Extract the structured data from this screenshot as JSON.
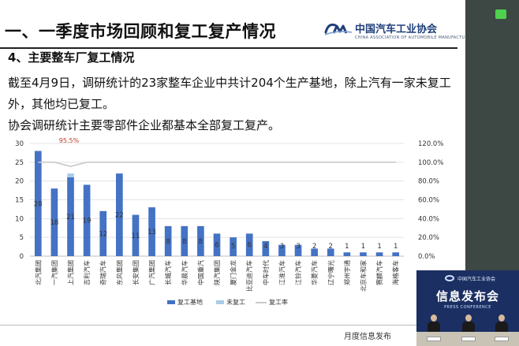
{
  "slide": {
    "title": "一、一季度市场回顾和复工复产情况",
    "logo_text": "中国汽车工业协会",
    "logo_sub": "CHINA ASSOCIATION OF AUTOMOBILE MANUFACTURERS",
    "section": "4、主要整车厂复工情况",
    "para1": "截至4月9日，调研统计的23家整车企业中共计204个生产基地，除上汽有一家未复工外，其他均已复工。",
    "para2": "协会调研统计主要零部件企业都基本全部复工复产。",
    "footer": "月度信息发布"
  },
  "video": {
    "org": "中国汽车工业协会",
    "title": "信息发布会",
    "subtitle": "PRESS CONFERENCE"
  },
  "colors": {
    "resumed": "#4472c4",
    "not_resumed": "#a9cce8",
    "rate_line": "#c9c9c9",
    "rate_label": "#c0392b",
    "right_bar": "#3d4744"
  },
  "chart_data": {
    "type": "bar",
    "stacked": true,
    "categories": [
      "北汽集团",
      "一汽集团",
      "上汽集团",
      "吉利汽车",
      "奇瑞汽车",
      "东风集团",
      "长安集团",
      "广汽集团",
      "长城汽车",
      "华晨汽车",
      "中国重汽",
      "陕汽集团",
      "厦门金龙",
      "比亚迪汽车",
      "中车时代",
      "江淮汽车",
      "江铃汽车",
      "华菱汽车",
      "辽宁曙光",
      "郑州宇通",
      "北京车和家",
      "赛麟汽车",
      "海格客车"
    ],
    "series": [
      {
        "name": "复工基地",
        "axis": "left",
        "values": [
          28,
          18,
          21,
          19,
          12,
          22,
          11,
          13,
          8,
          8,
          8,
          6,
          5,
          6,
          4,
          3,
          3,
          2,
          2,
          1,
          1,
          1,
          1
        ]
      },
      {
        "name": "未复工",
        "axis": "left",
        "values": [
          0,
          0,
          1,
          0,
          0,
          0,
          0,
          0,
          0,
          0,
          0,
          0,
          0,
          0,
          0,
          0,
          0,
          0,
          0,
          0,
          0,
          0,
          0
        ]
      },
      {
        "name": "复工率",
        "axis": "right",
        "type": "line",
        "values": [
          100,
          100,
          95.5,
          100,
          100,
          100,
          100,
          100,
          100,
          100,
          100,
          100,
          100,
          100,
          100,
          100,
          100,
          100,
          100,
          100,
          100,
          100,
          100
        ]
      }
    ],
    "data_labels": [
      "28",
      "18",
      "21",
      "19",
      "12",
      "22",
      "11",
      "13",
      "8",
      "8",
      "8",
      "6",
      "5",
      "6",
      "4",
      "3",
      "3",
      "2",
      "2",
      "1",
      "1",
      "1",
      "1"
    ],
    "rate_annotation": "95.5%",
    "y_left": {
      "min": 0,
      "max": 30,
      "ticks": [
        "0",
        "5",
        "10",
        "15",
        "20",
        "25",
        "30"
      ]
    },
    "y_right": {
      "min": 0,
      "max": 120,
      "ticks": [
        "0.0%",
        "20.0%",
        "40.0%",
        "60.0%",
        "80.0%",
        "100.0%",
        "120.0%"
      ]
    },
    "grid": true,
    "legend_position": "bottom"
  }
}
